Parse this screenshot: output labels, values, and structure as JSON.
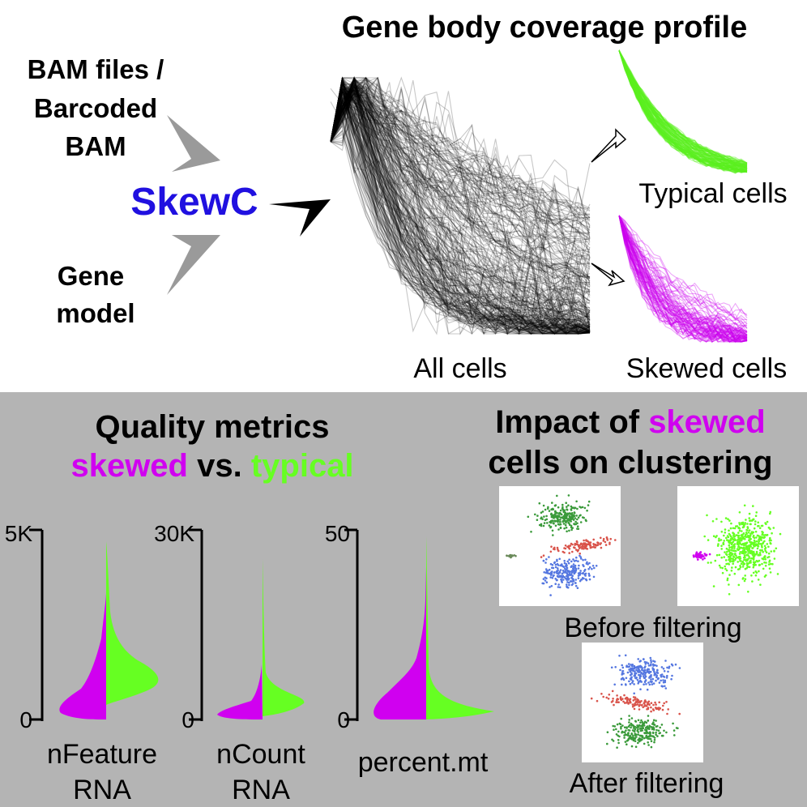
{
  "workflow": {
    "title": "Gene body coverage profile",
    "input_bam": [
      "BAM files /",
      "Barcoded",
      "BAM"
    ],
    "input_gene": [
      "Gene",
      "model"
    ],
    "tool": "SkewC",
    "all_cells_label": "All cells",
    "typical_label": "Typical cells",
    "skewed_label": "Skewed cells"
  },
  "quality": {
    "title": "Quality metrics",
    "subtitle_skewed": "skewed",
    "subtitle_vs": " vs. ",
    "subtitle_typical": "typical",
    "panels": [
      {
        "label_lines": [
          "nFeature",
          "RNA"
        ],
        "top_tick": "5K",
        "zero_tick": "0"
      },
      {
        "label_lines": [
          "nCount",
          "RNA"
        ],
        "top_tick": "30K",
        "zero_tick": "0"
      },
      {
        "label_lines": [
          "percent.mt"
        ],
        "top_tick": "50",
        "zero_tick": "0"
      }
    ]
  },
  "clustering": {
    "title_part1": "Impact of ",
    "title_skewed": "skewed",
    "title_line2": "cells on clustering",
    "before_label": "Before filtering",
    "after_label": "After filtering"
  },
  "colors": {
    "skewed": "#d000f0",
    "typical": "#66ff22",
    "tool": "#2010e0",
    "panel_bg": "#b4b4b4",
    "cluster_green": "#3a9a3a",
    "cluster_red": "#d9534a",
    "cluster_blue": "#5577e0"
  }
}
